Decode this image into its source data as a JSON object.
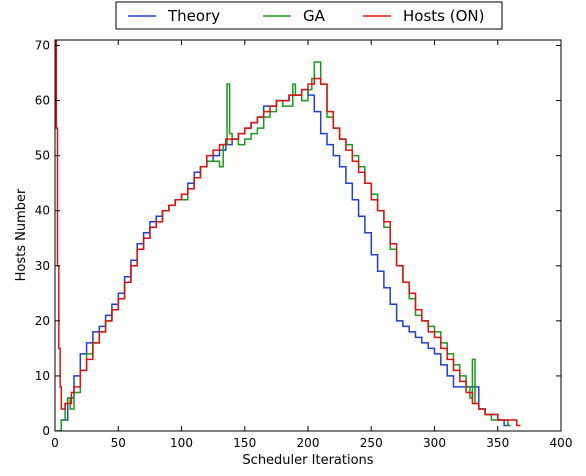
{
  "chart_data": {
    "type": "line",
    "title": "",
    "xlabel": "Scheduler Iterations",
    "ylabel": "Hosts Number",
    "xlim": [
      0,
      400
    ],
    "ylim": [
      0,
      71
    ],
    "xticks": [
      0,
      50,
      100,
      150,
      200,
      250,
      300,
      350,
      400
    ],
    "yticks": [
      0,
      10,
      20,
      30,
      40,
      50,
      60,
      70
    ],
    "grid": false,
    "legend_position": "top-center",
    "series": [
      {
        "name": "Theory",
        "color": "#1f3fd6",
        "x": [
          0,
          5,
          10,
          15,
          20,
          25,
          30,
          35,
          40,
          45,
          50,
          55,
          60,
          65,
          70,
          75,
          80,
          85,
          90,
          95,
          100,
          105,
          110,
          115,
          120,
          125,
          130,
          135,
          140,
          145,
          150,
          155,
          160,
          165,
          170,
          175,
          180,
          185,
          190,
          195,
          200,
          205,
          210,
          215,
          220,
          225,
          230,
          235,
          240,
          245,
          250,
          255,
          260,
          265,
          270,
          275,
          280,
          285,
          290,
          295,
          300,
          305,
          310,
          315,
          320,
          325,
          330,
          335,
          340,
          345,
          350,
          355,
          360
        ],
        "y": [
          0,
          2,
          6,
          10,
          14,
          16,
          18,
          19,
          21,
          23,
          25,
          28,
          31,
          34,
          36,
          38,
          39,
          40,
          41,
          42,
          43,
          45,
          47,
          48,
          49,
          50,
          51,
          52,
          53,
          54,
          55,
          56,
          57,
          59,
          59,
          60,
          60,
          61,
          61,
          62,
          61,
          58,
          54,
          52,
          50,
          48,
          45,
          42,
          39,
          36,
          32,
          29,
          26,
          23,
          20,
          19,
          18,
          17,
          16,
          15,
          14,
          12,
          10,
          8,
          8,
          8,
          8,
          4,
          3,
          3,
          2,
          1,
          1
        ]
      },
      {
        "name": "GA",
        "color": "#1a9a1a",
        "x": [
          0,
          5,
          8,
          10,
          12,
          15,
          20,
          25,
          30,
          35,
          40,
          45,
          50,
          55,
          60,
          65,
          70,
          75,
          80,
          85,
          90,
          95,
          100,
          105,
          110,
          115,
          120,
          125,
          130,
          133,
          136,
          138,
          140,
          145,
          150,
          155,
          160,
          165,
          170,
          175,
          180,
          185,
          188,
          190,
          195,
          200,
          203,
          205,
          208,
          210,
          215,
          220,
          225,
          230,
          235,
          240,
          245,
          250,
          255,
          260,
          265,
          270,
          275,
          280,
          285,
          290,
          295,
          300,
          305,
          310,
          315,
          320,
          325,
          328,
          330,
          332,
          335,
          340,
          345,
          350,
          355,
          358,
          360
        ],
        "y": [
          0,
          2,
          5,
          6,
          4,
          7,
          11,
          14,
          16,
          18,
          20,
          22,
          24,
          27,
          30,
          33,
          35,
          37,
          38,
          40,
          41,
          42,
          42,
          44,
          46,
          48,
          49,
          49,
          48,
          52,
          63,
          54,
          53,
          52,
          53,
          54,
          55,
          57,
          58,
          60,
          59,
          59,
          63,
          61,
          60,
          62,
          64,
          67,
          67,
          63,
          57,
          55,
          53,
          52,
          50,
          48,
          45,
          43,
          40,
          37,
          33,
          30,
          27,
          24,
          21,
          20,
          19,
          18,
          16,
          14,
          12,
          10,
          8,
          6,
          13,
          5,
          4,
          3,
          2,
          2,
          2,
          1,
          1
        ]
      },
      {
        "name": "Hosts (ON)",
        "color": "#e01010",
        "x": [
          0,
          1,
          2,
          3,
          4,
          5,
          8,
          10,
          13,
          15,
          20,
          25,
          30,
          35,
          40,
          45,
          50,
          55,
          60,
          65,
          70,
          75,
          80,
          85,
          90,
          95,
          100,
          105,
          110,
          115,
          120,
          125,
          130,
          135,
          140,
          145,
          150,
          155,
          160,
          165,
          170,
          175,
          180,
          185,
          190,
          195,
          200,
          205,
          210,
          215,
          220,
          225,
          230,
          235,
          240,
          245,
          250,
          255,
          260,
          265,
          270,
          275,
          280,
          285,
          290,
          295,
          300,
          305,
          310,
          315,
          320,
          325,
          330,
          335,
          340,
          345,
          350,
          355,
          360,
          365,
          368
        ],
        "y": [
          71,
          55,
          30,
          15,
          8,
          4,
          5,
          5,
          7,
          8,
          11,
          13,
          16,
          18,
          20,
          22,
          24,
          27,
          30,
          33,
          35,
          37,
          38,
          40,
          41,
          42,
          43,
          44,
          46,
          48,
          50,
          51,
          52,
          53,
          53,
          54,
          55,
          56,
          57,
          58,
          59,
          60,
          60,
          61,
          61,
          62,
          63,
          64,
          63,
          58,
          55,
          53,
          51,
          49,
          47,
          45,
          42,
          40,
          38,
          34,
          30,
          27,
          25,
          22,
          20,
          18,
          17,
          15,
          13,
          11,
          9,
          7,
          5,
          4,
          3,
          3,
          2,
          2,
          2,
          1,
          1
        ]
      }
    ]
  }
}
